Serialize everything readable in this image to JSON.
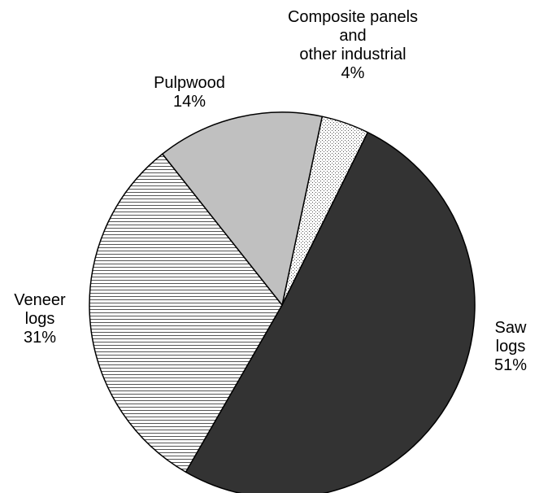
{
  "chart_data": {
    "type": "pie",
    "title": "",
    "start_angle_deg": 12,
    "direction": "clockwise",
    "slices": [
      {
        "label_lines": [
          "Composite panels",
          "and",
          "other industrial"
        ],
        "percent_label": "4%",
        "value": 4,
        "fill": "dots"
      },
      {
        "label_lines": [
          "Saw",
          "logs"
        ],
        "percent_label": "51%",
        "value": 51,
        "fill": "#333333"
      },
      {
        "label_lines": [
          "Veneer",
          "logs"
        ],
        "percent_label": "31%",
        "value": 31,
        "fill": "hlines"
      },
      {
        "label_lines": [
          "Pulpwood"
        ],
        "percent_label": "14%",
        "value": 14,
        "fill": "#c0c0c0"
      }
    ]
  }
}
